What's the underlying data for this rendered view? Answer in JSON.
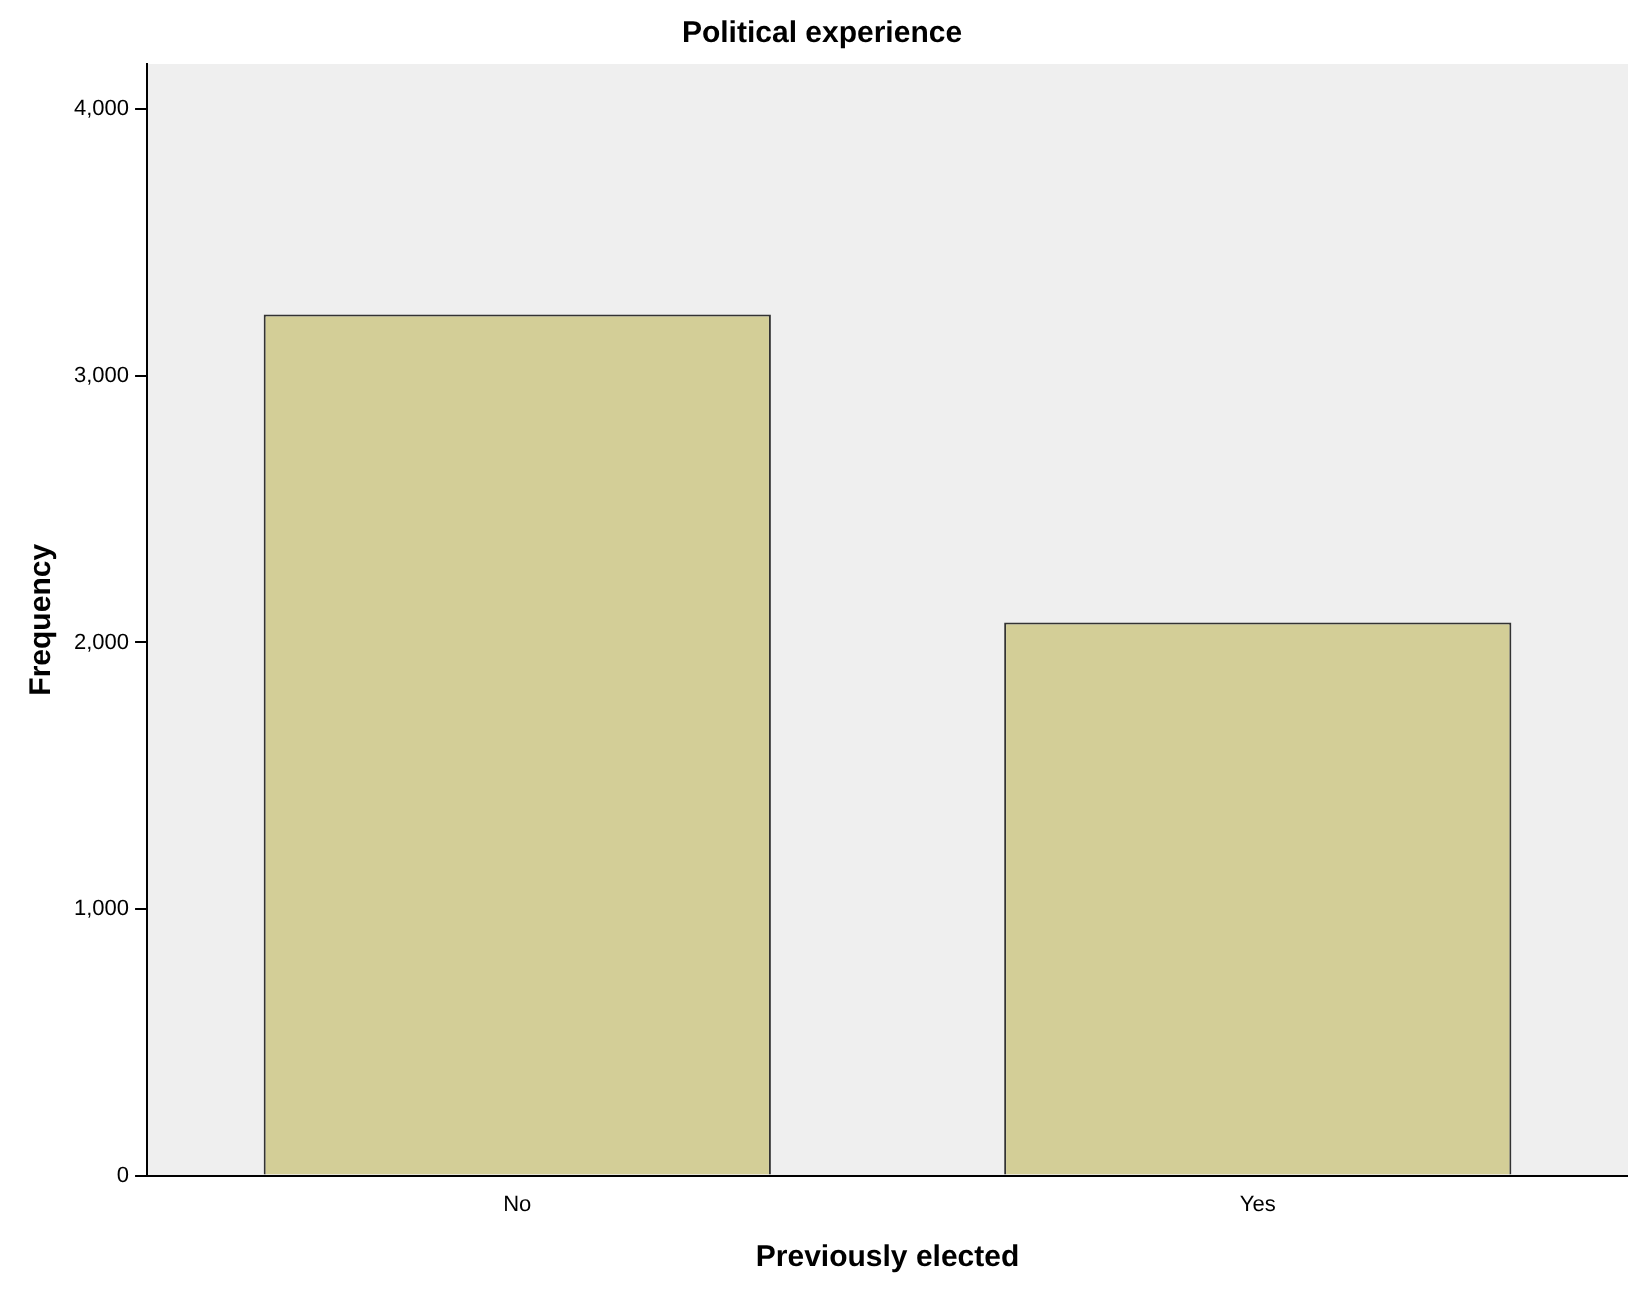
{
  "chart_data": {
    "type": "bar",
    "title": "Political experience",
    "xlabel": "Previously elected",
    "ylabel": "Frequency",
    "categories": [
      "No",
      "Yes"
    ],
    "values": [
      3230,
      2075
    ],
    "color": "#d3ce97",
    "ylim": [
      0,
      4170
    ],
    "yticks": [
      {
        "value": 0,
        "label": "0"
      },
      {
        "value": 1000,
        "label": "1,000"
      },
      {
        "value": 2000,
        "label": "2,000"
      },
      {
        "value": 3000,
        "label": "3,000"
      },
      {
        "value": 4000,
        "label": "4,000"
      }
    ],
    "grid": false
  }
}
